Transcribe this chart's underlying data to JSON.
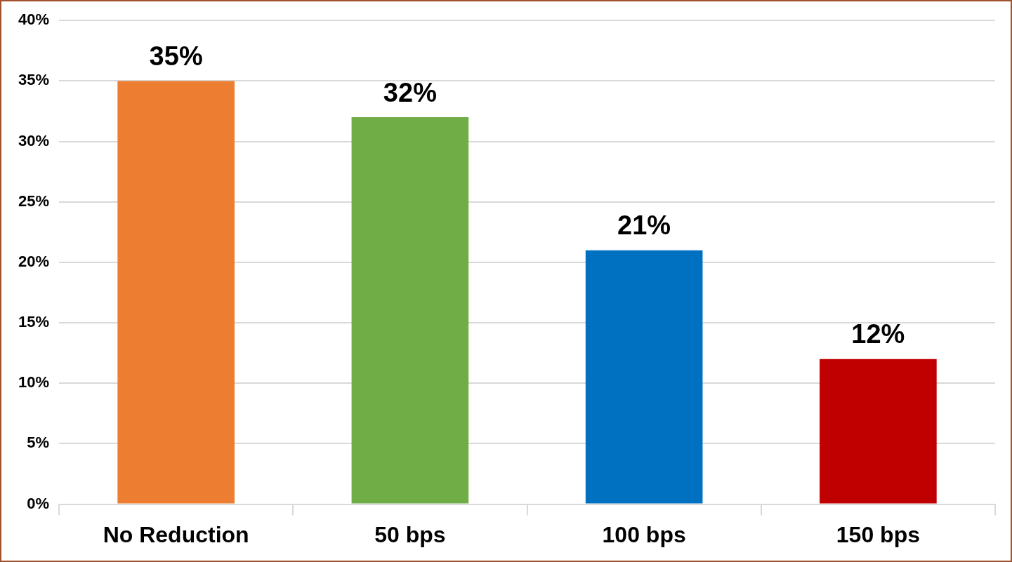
{
  "chart_data": {
    "type": "bar",
    "categories": [
      "No Reduction",
      "50 bps",
      "100 bps",
      "150 bps"
    ],
    "values": [
      35,
      32,
      21,
      12
    ],
    "colors": [
      "#ed7d31",
      "#70ad47",
      "#0070c0",
      "#c00000"
    ],
    "value_labels": [
      "35%",
      "32%",
      "21%",
      "12%"
    ],
    "ylim": [
      0,
      40
    ],
    "yticks": [
      {
        "value": 0,
        "label": "0%"
      },
      {
        "value": 5,
        "label": "5%"
      },
      {
        "value": 10,
        "label": "10%"
      },
      {
        "value": 15,
        "label": "15%"
      },
      {
        "value": 20,
        "label": "20%"
      },
      {
        "value": 25,
        "label": "25%"
      },
      {
        "value": 30,
        "label": "30%"
      },
      {
        "value": 35,
        "label": "35%"
      },
      {
        "value": 40,
        "label": "40%"
      }
    ],
    "grid": "y",
    "legend": false
  }
}
